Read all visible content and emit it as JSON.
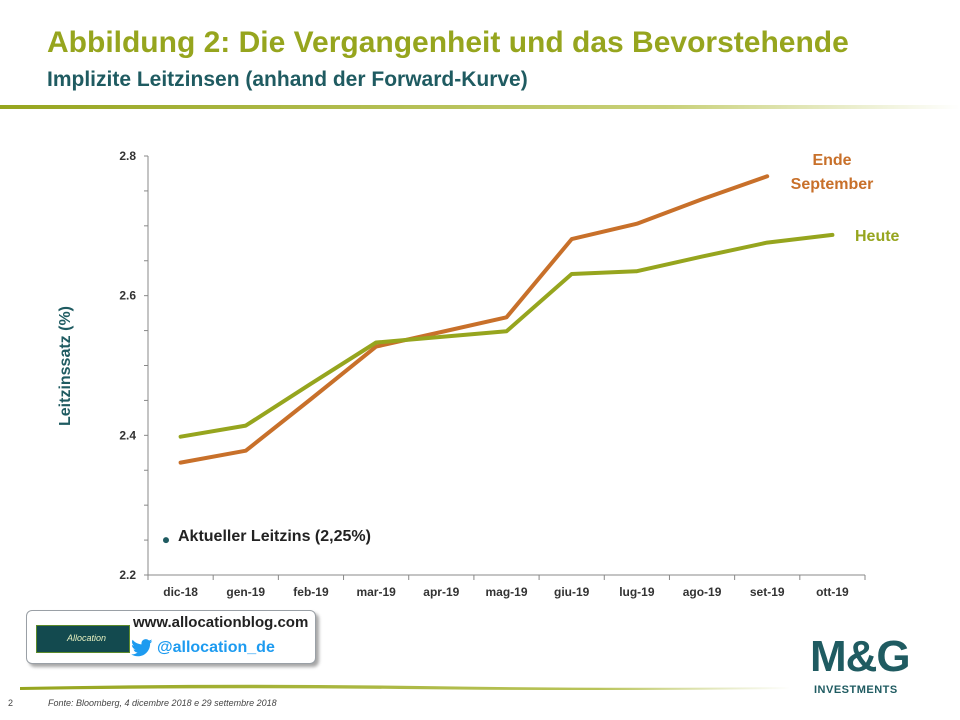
{
  "header": {
    "title": "Abbildung 2: Die Vergangenheit und das Bevorstehende",
    "subtitle": "Implizite Leitzinsen (anhand der Forward-Kurve)"
  },
  "chart_data": {
    "type": "line",
    "ylabel": "Leitzinssatz (%)",
    "xlabel": "",
    "ylim": [
      2.2,
      2.8
    ],
    "y_ticks": [
      2.2,
      2.4,
      2.6,
      2.8
    ],
    "y_tick_labels": [
      "2.2",
      "2.4",
      "2.6",
      "2.8"
    ],
    "categories": [
      "dic-18",
      "gen-19",
      "feb-19",
      "mar-19",
      "apr-19",
      "mag-19",
      "giu-19",
      "lug-19",
      "ago-19",
      "set-19",
      "ott-19"
    ],
    "grid": false,
    "series": [
      {
        "name": "Ende September",
        "name_lines": [
          "Ende",
          "September"
        ],
        "color": "#c8702a",
        "values": [
          2.361,
          2.378,
          2.452,
          2.527,
          2.548,
          2.569,
          2.681,
          2.703,
          2.738,
          2.771,
          null
        ]
      },
      {
        "name": "Heute",
        "name_lines": [
          "Heute"
        ],
        "color": "#96a51e",
        "values": [
          2.398,
          2.414,
          2.474,
          2.533,
          2.541,
          2.549,
          2.631,
          2.635,
          2.656,
          2.676,
          2.687
        ]
      }
    ],
    "annotations": [
      {
        "text": "Aktueller Leitzins (2,25%)",
        "marker_value": 2.25,
        "color": "#1f5b61"
      }
    ]
  },
  "colors": {
    "accent_green": "#96a51e",
    "dark_teal": "#1f5b61",
    "orange": "#c8702a"
  },
  "footer": {
    "url": "www.allocationblog.com",
    "twitter_handle": "@allocation_de",
    "logo_text": "Allocation",
    "twitter_icon": "twitter-bird-icon",
    "brand": "M&G",
    "brand_sub": "INVESTMENTS",
    "page_number": "2",
    "source": "Fonte: Bloomberg, 4 dicembre 2018 e 29 settembre 2018"
  }
}
